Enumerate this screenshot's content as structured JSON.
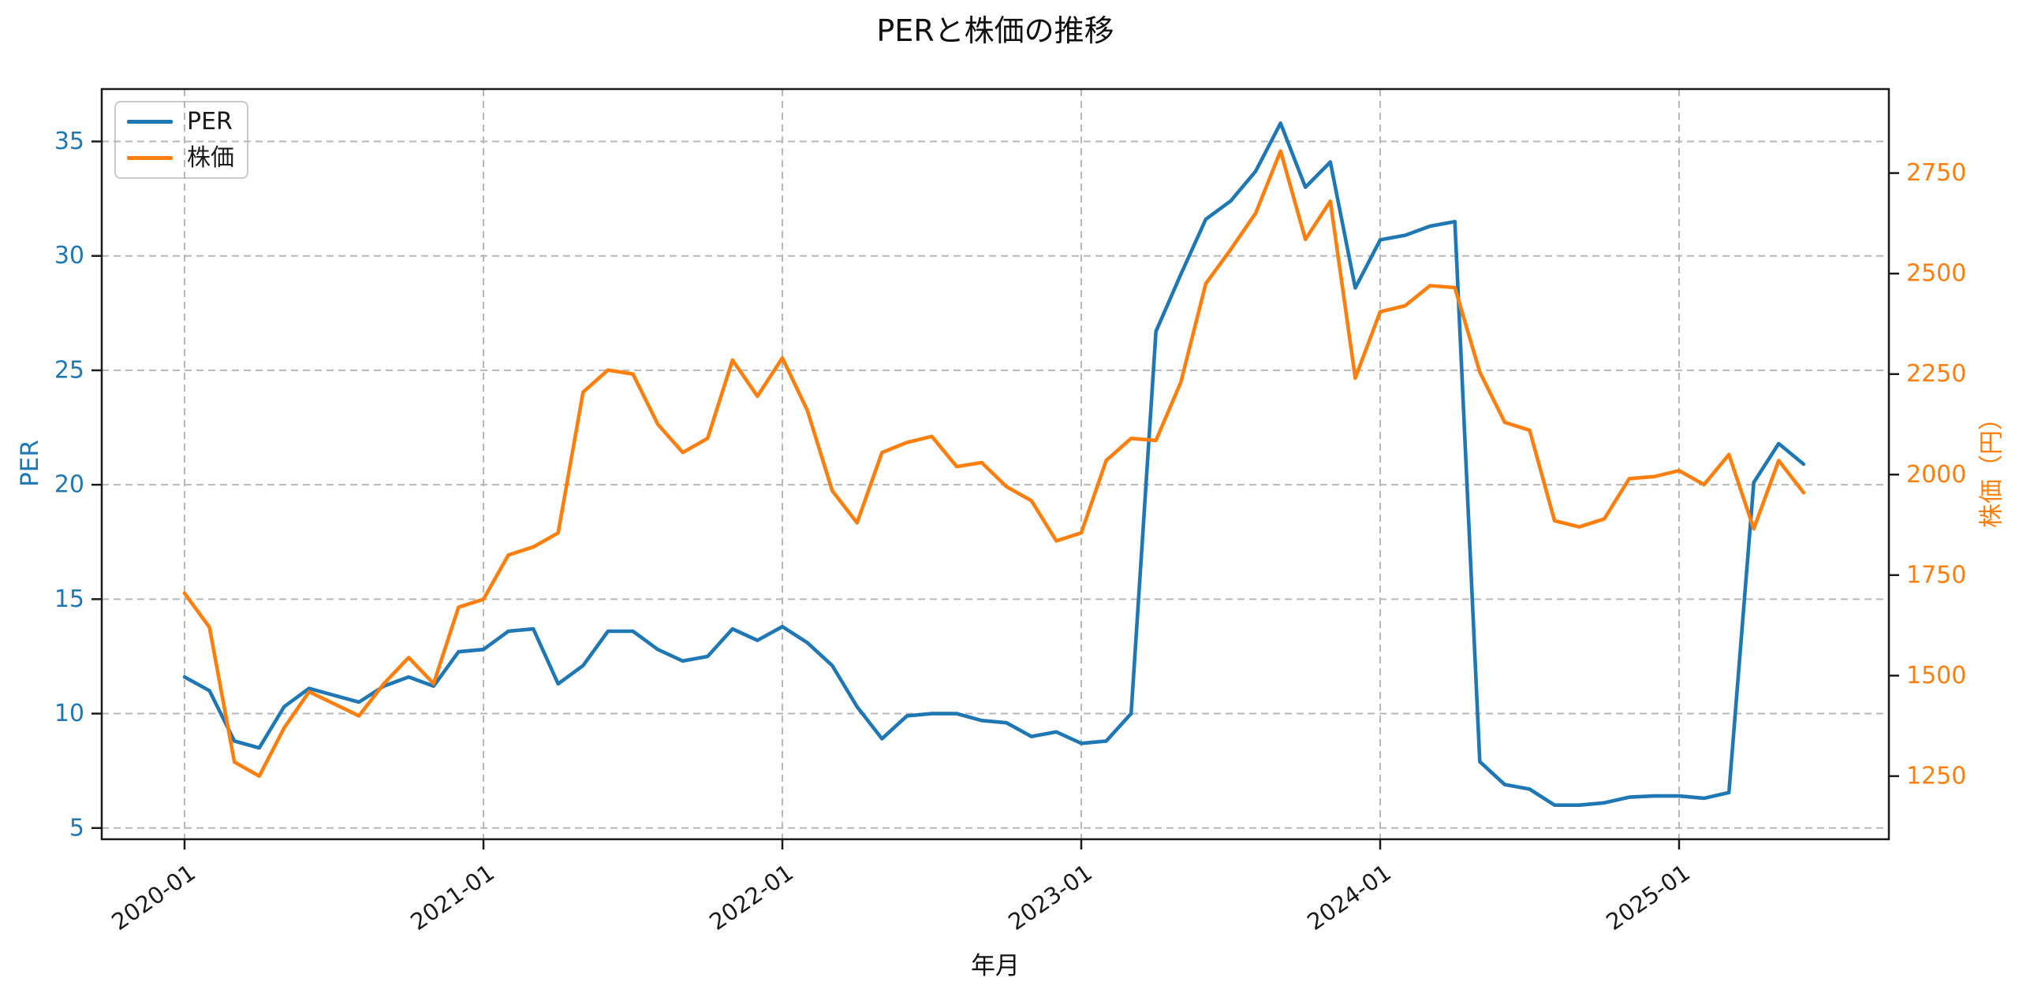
{
  "colors": {
    "per_line": "#1f77b4",
    "kabuka_line": "#ff7f0e",
    "grid": "#b0b0b0",
    "spine": "#1a1a1a",
    "x_tick_label": "#1a1a1a"
  },
  "legend": {
    "items": [
      {
        "label": "PER",
        "color": "#1f77b4"
      },
      {
        "label": "株価",
        "color": "#ff7f0e"
      }
    ]
  },
  "chart_data": {
    "type": "line",
    "title": "PERと株価の推移",
    "xlabel": "年月",
    "ylabel_left": "PER",
    "ylabel_right": "株価（円）",
    "grid": true,
    "legend_position": "upper-left",
    "x": [
      "2020-01",
      "2020-02",
      "2020-03",
      "2020-04",
      "2020-05",
      "2020-06",
      "2020-07",
      "2020-08",
      "2020-09",
      "2020-10",
      "2020-11",
      "2020-12",
      "2021-01",
      "2021-02",
      "2021-03",
      "2021-04",
      "2021-05",
      "2021-06",
      "2021-07",
      "2021-08",
      "2021-09",
      "2021-10",
      "2021-11",
      "2021-12",
      "2022-01",
      "2022-02",
      "2022-03",
      "2022-04",
      "2022-05",
      "2022-06",
      "2022-07",
      "2022-08",
      "2022-09",
      "2022-10",
      "2022-11",
      "2022-12",
      "2023-01",
      "2023-02",
      "2023-03",
      "2023-04",
      "2023-05",
      "2023-06",
      "2023-07",
      "2023-08",
      "2023-09",
      "2023-10",
      "2023-11",
      "2023-12",
      "2024-01",
      "2024-02",
      "2024-03",
      "2024-04",
      "2024-05",
      "2024-06",
      "2024-07",
      "2024-08",
      "2024-09",
      "2024-10",
      "2024-11",
      "2024-12",
      "2025-01",
      "2025-02",
      "2025-03",
      "2025-04",
      "2025-05",
      "2025-06"
    ],
    "x_tick_labels": [
      "2020-01",
      "2021-01",
      "2022-01",
      "2023-01",
      "2024-01",
      "2025-01"
    ],
    "y_ticks_left": [
      5,
      10,
      15,
      20,
      25,
      30,
      35
    ],
    "y_ticks_right": [
      1250,
      1500,
      1750,
      2000,
      2250,
      2500,
      2750
    ],
    "ylim_left": [
      4.51,
      37.29
    ],
    "ylim_right": [
      1093,
      2959
    ],
    "series": [
      {
        "name": "PER",
        "axis": "left",
        "color": "#1f77b4",
        "values": [
          11.6,
          11.0,
          8.8,
          8.5,
          10.3,
          11.1,
          10.8,
          10.5,
          11.2,
          11.6,
          11.2,
          12.7,
          12.8,
          13.6,
          13.7,
          11.3,
          12.1,
          13.6,
          13.6,
          12.8,
          12.3,
          12.5,
          13.7,
          13.2,
          13.8,
          13.1,
          12.1,
          10.3,
          8.9,
          9.9,
          10.0,
          10.0,
          9.7,
          9.6,
          9.0,
          9.2,
          8.7,
          8.8,
          10.0,
          26.7,
          29.2,
          31.6,
          32.4,
          33.7,
          35.8,
          33.0,
          34.1,
          28.6,
          30.7,
          30.9,
          31.3,
          31.5,
          7.9,
          6.9,
          6.7,
          6.0,
          6.0,
          6.1,
          6.35,
          6.4,
          6.4,
          6.3,
          6.55,
          20.1,
          21.8,
          20.9
        ]
      },
      {
        "name": "株価",
        "axis": "right",
        "color": "#ff7f0e",
        "values": [
          1705,
          1620,
          1285,
          1250,
          1370,
          1460,
          1430,
          1400,
          1480,
          1545,
          1480,
          1670,
          1690,
          1800,
          1820,
          1855,
          2205,
          2260,
          2250,
          2125,
          2055,
          2090,
          2285,
          2195,
          2290,
          2160,
          1960,
          1880,
          2055,
          2080,
          2095,
          2020,
          2030,
          1970,
          1935,
          1835,
          1855,
          2035,
          2090,
          2085,
          2230,
          2475,
          2560,
          2650,
          2805,
          2585,
          2680,
          2240,
          2405,
          2420,
          2470,
          2465,
          2255,
          2130,
          2110,
          1885,
          1870,
          1890,
          1990,
          1995,
          2010,
          1975,
          2050,
          1865,
          2035,
          1955
        ]
      }
    ]
  }
}
